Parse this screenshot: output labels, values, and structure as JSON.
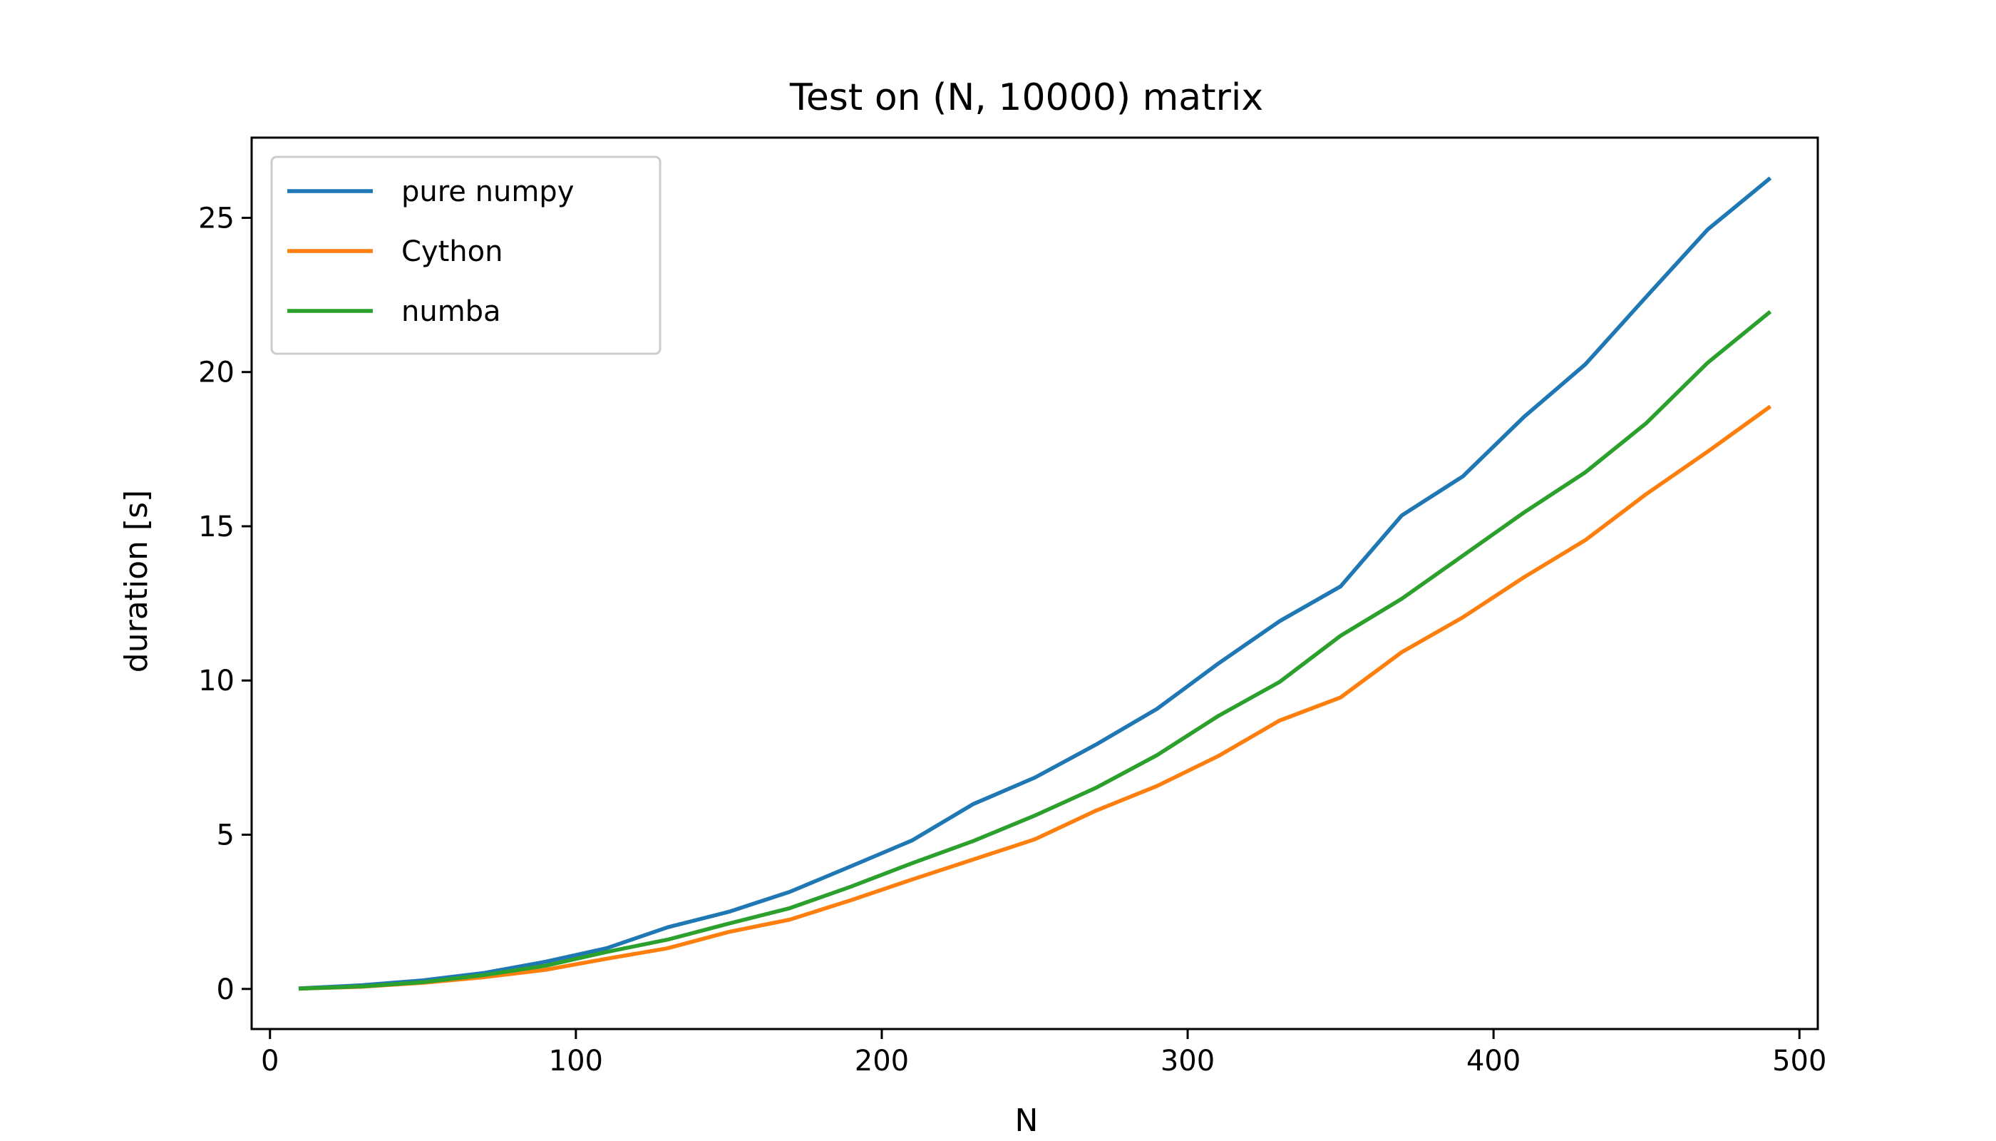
{
  "chart_data": {
    "type": "line",
    "title": "Test on (N, 10000) matrix",
    "xlabel": "N",
    "ylabel": "duration [s]",
    "xlim": [
      -6,
      506
    ],
    "ylim": [
      -1.3,
      27.6
    ],
    "xticks": [
      0,
      100,
      200,
      300,
      400,
      500
    ],
    "yticks": [
      0,
      5,
      10,
      15,
      20,
      25
    ],
    "grid": false,
    "legend_position": "top-left",
    "x": [
      10,
      30,
      50,
      70,
      90,
      110,
      130,
      150,
      170,
      190,
      210,
      230,
      250,
      270,
      290,
      310,
      330,
      350,
      370,
      390,
      410,
      430,
      450,
      470,
      490
    ],
    "series": [
      {
        "name": "pure numpy",
        "color": "#1f77b4",
        "values": [
          0.02,
          0.12,
          0.28,
          0.52,
          0.88,
          1.32,
          2.0,
          2.5,
          3.15,
          3.98,
          4.82,
          6.0,
          6.85,
          7.92,
          9.08,
          10.55,
          11.92,
          13.05,
          15.35,
          16.62,
          18.55,
          20.25,
          22.45,
          24.62,
          26.25
        ]
      },
      {
        "name": "Cython",
        "color": "#ff7f0e",
        "values": [
          0.01,
          0.07,
          0.2,
          0.38,
          0.62,
          0.98,
          1.32,
          1.85,
          2.25,
          2.88,
          3.55,
          4.2,
          4.85,
          5.78,
          6.58,
          7.55,
          8.7,
          9.45,
          10.92,
          12.05,
          13.35,
          14.55,
          16.05,
          17.42,
          18.85
        ]
      },
      {
        "name": "numba",
        "color": "#2ca02c",
        "values": [
          0.01,
          0.08,
          0.22,
          0.45,
          0.75,
          1.2,
          1.6,
          2.12,
          2.62,
          3.32,
          4.08,
          4.8,
          5.62,
          6.52,
          7.58,
          8.85,
          9.95,
          11.45,
          12.65,
          14.05,
          15.45,
          16.75,
          18.35,
          20.3,
          21.92
        ]
      }
    ]
  }
}
